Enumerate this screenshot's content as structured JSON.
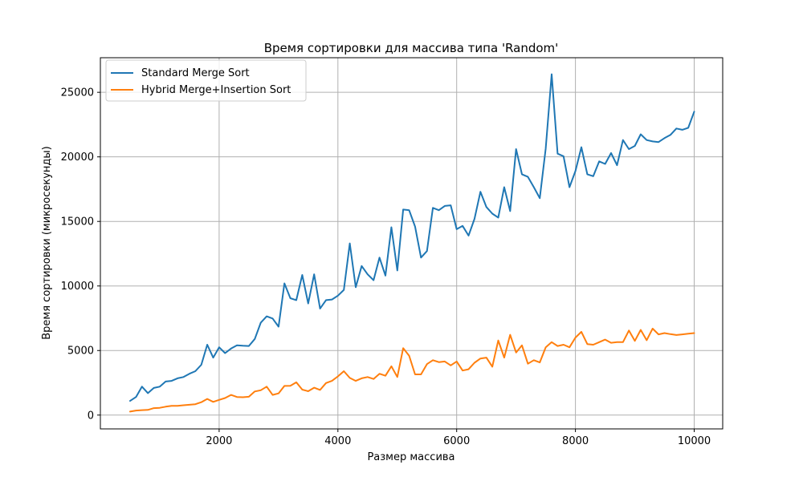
{
  "chart_data": {
    "type": "line",
    "title": "Время сортировки для массива типа 'Random'",
    "xlabel": "Размер массива",
    "ylabel": "Время сортировки (микросекунды)",
    "xlim": [
      0,
      10480
    ],
    "ylim": [
      -1070,
      27680
    ],
    "xticks": [
      2000,
      4000,
      6000,
      8000,
      10000
    ],
    "yticks": [
      0,
      5000,
      10000,
      15000,
      20000,
      25000
    ],
    "grid": true,
    "legend_position": "top-left",
    "x": [
      500,
      600,
      700,
      800,
      900,
      1000,
      1100,
      1200,
      1300,
      1400,
      1500,
      1600,
      1700,
      1800,
      1900,
      2000,
      2100,
      2200,
      2300,
      2400,
      2500,
      2600,
      2700,
      2800,
      2900,
      3000,
      3100,
      3200,
      3300,
      3400,
      3500,
      3600,
      3700,
      3800,
      3900,
      4000,
      4100,
      4200,
      4300,
      4400,
      4500,
      4600,
      4700,
      4800,
      4900,
      5000,
      5100,
      5200,
      5300,
      5400,
      5500,
      5600,
      5700,
      5800,
      5900,
      6000,
      6100,
      6200,
      6300,
      6400,
      6500,
      6600,
      6700,
      6800,
      6900,
      7000,
      7100,
      7200,
      7300,
      7400,
      7500,
      7600,
      7700,
      7800,
      7900,
      8000,
      8100,
      8200,
      8300,
      8400,
      8500,
      8600,
      8700,
      8800,
      8900,
      9000,
      9100,
      9200,
      9300,
      9400,
      9500,
      9600,
      9700,
      9800,
      9900,
      10000
    ],
    "series": [
      {
        "name": "Standard Merge Sort",
        "color": "#1f77b4",
        "values": [
          1100,
          1400,
          2200,
          1700,
          2100,
          2200,
          2600,
          2650,
          2850,
          2950,
          3200,
          3400,
          3900,
          5450,
          4450,
          5250,
          4800,
          5150,
          5400,
          5370,
          5350,
          5900,
          7150,
          7650,
          7480,
          6850,
          10200,
          9050,
          8900,
          10850,
          8650,
          10900,
          8250,
          8900,
          8950,
          9250,
          9700,
          13300,
          9900,
          11550,
          10900,
          10450,
          12200,
          10800,
          14550,
          11200,
          15920,
          15870,
          14600,
          12200,
          12700,
          16050,
          15870,
          16200,
          16250,
          14400,
          14650,
          13900,
          15200,
          17300,
          16120,
          15600,
          15300,
          17650,
          15800,
          20600,
          18650,
          18450,
          17650,
          16800,
          20650,
          26400,
          20250,
          20050,
          17650,
          18900,
          20750,
          18650,
          18500,
          19650,
          19450,
          20300,
          19350,
          21300,
          20600,
          20850,
          21750,
          21300,
          21200,
          21150,
          21450,
          21700,
          22200,
          22100,
          22250,
          23500
        ]
      },
      {
        "name": "Hybrid Merge+Insertion Sort",
        "color": "#ff7f0e",
        "values": [
          270,
          350,
          380,
          400,
          540,
          560,
          650,
          720,
          720,
          760,
          800,
          840,
          1000,
          1250,
          1020,
          1180,
          1320,
          1560,
          1400,
          1380,
          1420,
          1830,
          1920,
          2200,
          1560,
          1680,
          2260,
          2270,
          2540,
          1970,
          1850,
          2120,
          1950,
          2480,
          2650,
          3000,
          3400,
          2880,
          2650,
          2850,
          2950,
          2800,
          3200,
          3050,
          3780,
          2950,
          5180,
          4600,
          3150,
          3150,
          3950,
          4250,
          4100,
          4150,
          3850,
          4150,
          3450,
          3550,
          4050,
          4380,
          4450,
          3750,
          5780,
          4450,
          6220,
          4850,
          5400,
          3980,
          4250,
          4080,
          5250,
          5650,
          5350,
          5450,
          5250,
          6000,
          6450,
          5500,
          5450,
          5650,
          5850,
          5600,
          5650,
          5650,
          6550,
          5750,
          6600,
          5800,
          6700,
          6250,
          6350,
          6270,
          6200,
          6250,
          6300,
          6350
        ]
      }
    ]
  }
}
